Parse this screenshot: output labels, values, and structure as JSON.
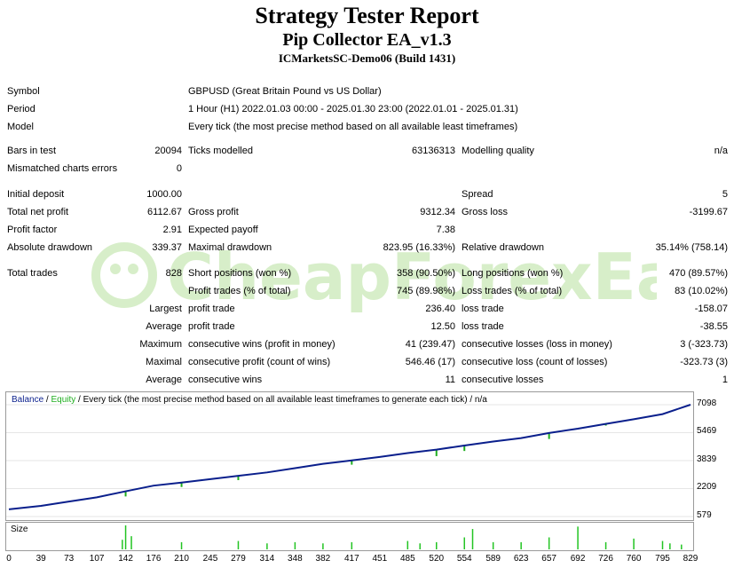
{
  "header": {
    "title": "Strategy Tester Report",
    "ea_name": "Pip Collector EA_v1.3",
    "server": "ICMarketsSC-Demo06 (Build 1431)"
  },
  "settings": {
    "symbol_label": "Symbol",
    "symbol_value": "GBPUSD (Great Britain Pound vs US Dollar)",
    "period_label": "Period",
    "period_value": "1 Hour (H1) 2022.01.03 00:00 - 2025.01.30 23:00 (2022.01.01 - 2025.01.31)",
    "model_label": "Model",
    "model_value": "Every tick (the most precise method based on all available least timeframes)"
  },
  "stats": {
    "bars_label": "Bars in test",
    "bars_value": "20094",
    "ticks_label": "Ticks modelled",
    "ticks_value": "63136313",
    "quality_label": "Modelling quality",
    "quality_value": "n/a",
    "mismatch_label": "Mismatched charts errors",
    "mismatch_value": "0",
    "deposit_label": "Initial deposit",
    "deposit_value": "1000.00",
    "spread_label": "Spread",
    "spread_value": "5",
    "netprofit_label": "Total net profit",
    "netprofit_value": "6112.67",
    "grossprofit_label": "Gross profit",
    "grossprofit_value": "9312.34",
    "grossloss_label": "Gross loss",
    "grossloss_value": "-3199.67",
    "pf_label": "Profit factor",
    "pf_value": "2.91",
    "payoff_label": "Expected payoff",
    "payoff_value": "7.38",
    "absdd_label": "Absolute drawdown",
    "absdd_value": "339.37",
    "maxdd_label": "Maximal drawdown",
    "maxdd_value": "823.95 (16.33%)",
    "reldd_label": "Relative drawdown",
    "reldd_value": "35.14% (758.14)",
    "trades_label": "Total trades",
    "trades_value": "828",
    "short_label": "Short positions (won %)",
    "short_value": "358 (90.50%)",
    "long_label": "Long positions (won %)",
    "long_value": "470 (89.57%)",
    "profittrades_label": "Profit trades (% of total)",
    "profittrades_value": "745 (89.98%)",
    "losstrades_label": "Loss trades (% of total)",
    "losstrades_value": "83 (10.02%)",
    "largest_label": "Largest",
    "largest_profit_label": "profit trade",
    "largest_profit_value": "236.40",
    "largest_loss_label": "loss trade",
    "largest_loss_value": "-158.07",
    "average_label": "Average",
    "avg_profit_label": "profit trade",
    "avg_profit_value": "12.50",
    "avg_loss_label": "loss trade",
    "avg_loss_value": "-38.55",
    "maximum_label": "Maximum",
    "max_wins_label": "consecutive wins (profit in money)",
    "max_wins_value": "41 (239.47)",
    "max_losses_label": "consecutive losses (loss in money)",
    "max_losses_value": "3 (-323.73)",
    "maximal_label": "Maximal",
    "maximal_profit_label": "consecutive profit (count of wins)",
    "maximal_profit_value": "546.46 (17)",
    "maximal_loss_label": "consecutive loss (count of losses)",
    "maximal_loss_value": "-323.73 (3)",
    "average2_label": "Average",
    "avg_wins_label": "consecutive wins",
    "avg_wins_value": "11",
    "avg_losses_label": "consecutive losses",
    "avg_losses_value": "1"
  },
  "watermark": {
    "text": "CheapForexEa"
  },
  "chart": {
    "balance_label": "Balance",
    "slash1": " / ",
    "equity_label": "Equity",
    "description": " / Every tick (the most precise method based on all available least timeframes to generate each tick) / n/a",
    "size_label": "Size"
  },
  "chart_data": {
    "type": "line",
    "series": [
      {
        "name": "Balance",
        "color": "#0a1f8c"
      },
      {
        "name": "Equity",
        "color": "#1fae1f"
      }
    ],
    "x": [
      0,
      39,
      73,
      107,
      142,
      176,
      210,
      245,
      279,
      314,
      348,
      382,
      417,
      451,
      485,
      520,
      554,
      589,
      623,
      657,
      692,
      726,
      760,
      795,
      829
    ],
    "balance": [
      1000,
      1200,
      1450,
      1700,
      2050,
      2380,
      2560,
      2760,
      2950,
      3150,
      3400,
      3650,
      3850,
      4050,
      4280,
      4480,
      4720,
      4950,
      5150,
      5450,
      5700,
      5980,
      6250,
      6550,
      7098
    ],
    "equity_dips": [
      [
        142,
        1750
      ],
      [
        210,
        2300
      ],
      [
        279,
        2700
      ],
      [
        417,
        3600
      ],
      [
        520,
        4100
      ],
      [
        554,
        4400
      ],
      [
        657,
        5100
      ],
      [
        726,
        5880
      ]
    ],
    "yticks": [
      7098,
      5469,
      3839,
      2209,
      579
    ],
    "ylim": [
      579,
      7098
    ],
    "size_spikes": [
      [
        142,
        1.0
      ],
      [
        149,
        0.55
      ],
      [
        138,
        0.4
      ],
      [
        210,
        0.3
      ],
      [
        279,
        0.35
      ],
      [
        314,
        0.25
      ],
      [
        348,
        0.3
      ],
      [
        382,
        0.25
      ],
      [
        417,
        0.3
      ],
      [
        485,
        0.35
      ],
      [
        500,
        0.25
      ],
      [
        520,
        0.3
      ],
      [
        554,
        0.5
      ],
      [
        564,
        0.85
      ],
      [
        589,
        0.3
      ],
      [
        623,
        0.3
      ],
      [
        657,
        0.5
      ],
      [
        692,
        0.95
      ],
      [
        726,
        0.3
      ],
      [
        760,
        0.45
      ],
      [
        795,
        0.35
      ],
      [
        804,
        0.25
      ],
      [
        818,
        0.2
      ]
    ]
  }
}
